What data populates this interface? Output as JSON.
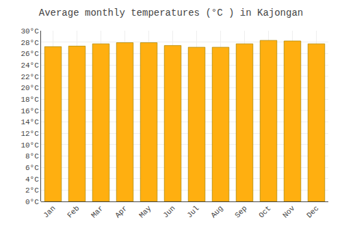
{
  "chart_data": {
    "type": "bar",
    "title": "Average monthly temperatures (°C ) in Kajongan",
    "categories": [
      "Jan",
      "Feb",
      "Mar",
      "Apr",
      "May",
      "Jun",
      "Jul",
      "Aug",
      "Sep",
      "Oct",
      "Nov",
      "Dec"
    ],
    "values": [
      27.2,
      27.3,
      27.7,
      27.9,
      27.9,
      27.4,
      27.1,
      27.1,
      27.7,
      28.3,
      28.2,
      27.7
    ],
    "color": "#FFAF10",
    "ylim": [
      0,
      30
    ],
    "yticks": [
      {
        "value": 0,
        "label": "0°C"
      },
      {
        "value": 2,
        "label": "2°C"
      },
      {
        "value": 4,
        "label": "4°C"
      },
      {
        "value": 6,
        "label": "6°C"
      },
      {
        "value": 8,
        "label": "8°C"
      },
      {
        "value": 10,
        "label": "10°C"
      },
      {
        "value": 12,
        "label": "12°C"
      },
      {
        "value": 14,
        "label": "14°C"
      },
      {
        "value": 16,
        "label": "16°C"
      },
      {
        "value": 18,
        "label": "18°C"
      },
      {
        "value": 20,
        "label": "20°C"
      },
      {
        "value": 22,
        "label": "22°C"
      },
      {
        "value": 24,
        "label": "24°C"
      },
      {
        "value": 26,
        "label": "26°C"
      },
      {
        "value": 28,
        "label": "28°C"
      },
      {
        "value": 30,
        "label": "30°C"
      }
    ],
    "grid": true
  }
}
